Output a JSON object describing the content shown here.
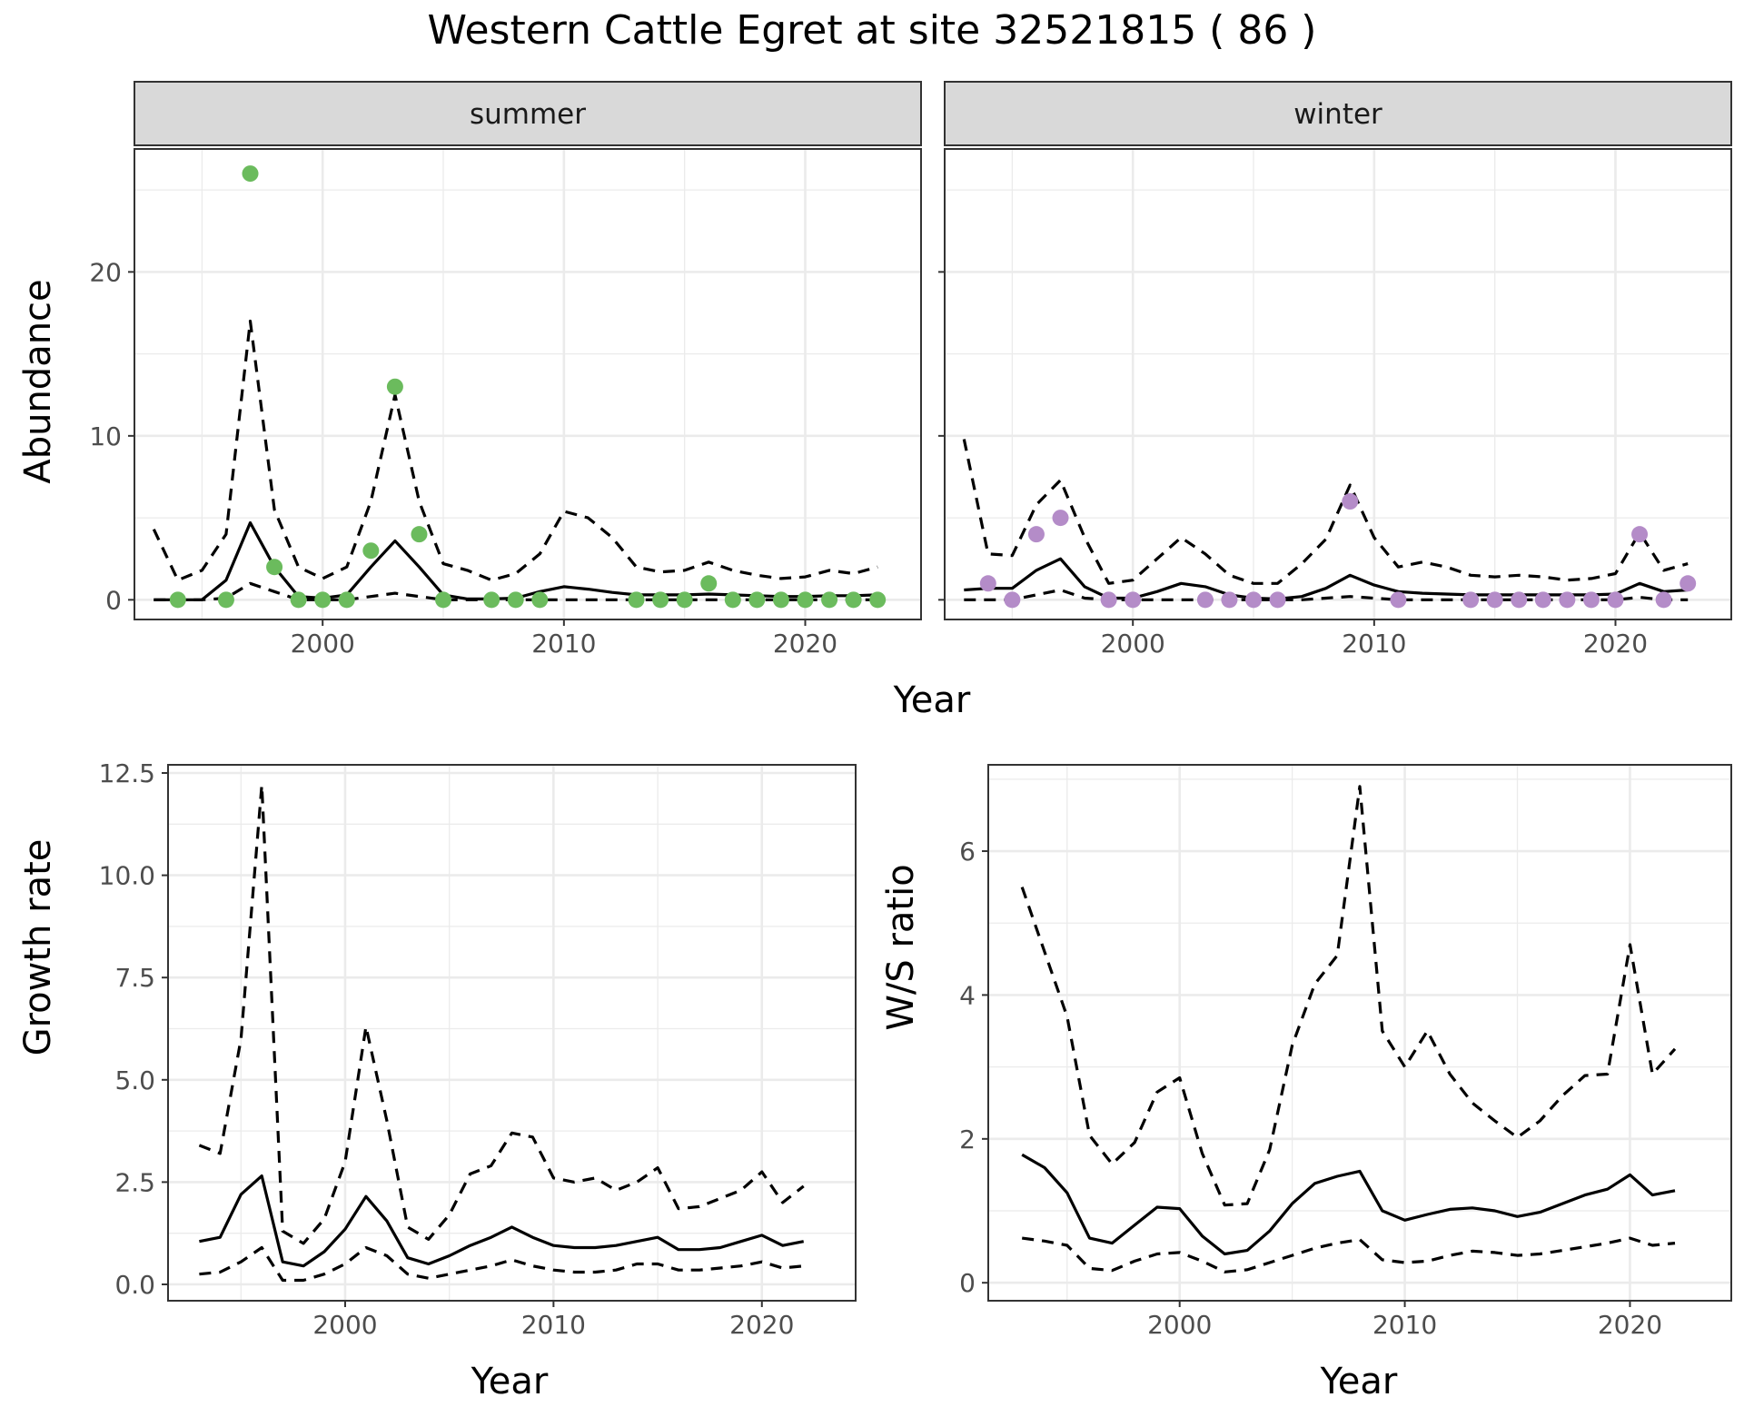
{
  "title": "Western Cattle Egret at site 32521815 ( 86 )",
  "colors": {
    "summer": "#6bbb5d",
    "winter": "#b48cc8",
    "line": "#000000",
    "strip_bg": "#d9d9d9",
    "grid": "#ebebeb"
  },
  "chart_data": [
    {
      "type": "line",
      "panel": "summer",
      "strip_label": "summer",
      "xlabel": "Year",
      "ylabel": "Abundance",
      "xlim": [
        1992.2,
        2024.8
      ],
      "ylim": [
        -1.2,
        27.5
      ],
      "x_ticks": [
        2000,
        2010,
        2020
      ],
      "x_tick_labels": [
        "2000",
        "2010",
        "2020"
      ],
      "y_ticks": [
        0,
        10,
        20
      ],
      "y_tick_labels": [
        "0",
        "10",
        "20"
      ],
      "grid": true,
      "points": {
        "x": [
          1994,
          1996,
          1997,
          1998,
          1999,
          2000,
          2001,
          2002,
          2003,
          2004,
          2005,
          2007,
          2008,
          2009,
          2013,
          2014,
          2015,
          2016,
          2017,
          2018,
          2019,
          2020,
          2021,
          2022,
          2023
        ],
        "y": [
          0,
          0,
          26,
          2,
          0,
          0,
          0,
          3,
          13,
          4,
          0,
          0,
          0,
          0,
          0,
          0,
          0,
          1,
          0,
          0,
          0,
          0,
          0,
          0,
          0
        ]
      },
      "series": [
        {
          "style": "solid",
          "x": [
            1993,
            1994,
            1995,
            1996,
            1997,
            1998,
            1999,
            2000,
            2001,
            2002,
            2003,
            2004,
            2005,
            2006,
            2007,
            2008,
            2009,
            2010,
            2011,
            2012,
            2013,
            2014,
            2015,
            2016,
            2017,
            2018,
            2019,
            2020,
            2021,
            2022,
            2023
          ],
          "y": [
            0,
            0,
            0,
            1.2,
            4.7,
            2.0,
            0.2,
            0.1,
            0.3,
            2.0,
            3.6,
            2.0,
            0.3,
            0.05,
            0.05,
            0.1,
            0.5,
            0.8,
            0.65,
            0.45,
            0.3,
            0.3,
            0.3,
            0.35,
            0.3,
            0.25,
            0.2,
            0.2,
            0.25,
            0.25,
            0.3
          ]
        },
        {
          "style": "dashed",
          "x": [
            1993,
            1994,
            1995,
            1996,
            1997,
            1998,
            1999,
            2000,
            2001,
            2002,
            2003,
            2004,
            2005,
            2006,
            2007,
            2008,
            2009,
            2010,
            2011,
            2012,
            2013,
            2014,
            2015,
            2016,
            2017,
            2018,
            2019,
            2020,
            2021,
            2022,
            2023
          ],
          "y": [
            4.3,
            1.2,
            1.8,
            4.0,
            17.0,
            5.5,
            2.0,
            1.3,
            2.0,
            6.0,
            12.5,
            6.0,
            2.2,
            1.8,
            1.2,
            1.6,
            2.8,
            5.4,
            5.0,
            3.8,
            2.0,
            1.7,
            1.8,
            2.3,
            1.8,
            1.5,
            1.3,
            1.4,
            1.8,
            1.6,
            2.0
          ]
        },
        {
          "style": "dashed",
          "x": [
            1993,
            1994,
            1995,
            1996,
            1997,
            1998,
            1999,
            2000,
            2001,
            2002,
            2003,
            2004,
            2005,
            2006,
            2007,
            2008,
            2009,
            2010,
            2011,
            2012,
            2013,
            2014,
            2015,
            2016,
            2017,
            2018,
            2019,
            2020,
            2021,
            2022,
            2023
          ],
          "y": [
            0,
            0,
            0,
            0.1,
            1.0,
            0.5,
            0,
            0,
            0,
            0.2,
            0.4,
            0.2,
            0,
            0,
            0,
            0,
            0,
            0,
            0,
            0,
            0,
            0,
            0,
            0,
            0,
            0,
            0,
            0,
            0,
            0,
            0
          ]
        }
      ]
    },
    {
      "type": "line",
      "panel": "winter",
      "strip_label": "winter",
      "xlabel": "Year",
      "ylabel": "Abundance",
      "xlim": [
        1992.2,
        2024.8
      ],
      "ylim": [
        -1.2,
        27.5
      ],
      "x_ticks": [
        2000,
        2010,
        2020
      ],
      "x_tick_labels": [
        "2000",
        "2010",
        "2020"
      ],
      "y_ticks": [
        0,
        10,
        20
      ],
      "y_tick_labels": [
        "0",
        "10",
        "20"
      ],
      "grid": true,
      "points": {
        "x": [
          1994,
          1995,
          1996,
          1997,
          1999,
          2000,
          2003,
          2004,
          2005,
          2006,
          2009,
          2011,
          2014,
          2015,
          2016,
          2017,
          2018,
          2019,
          2020,
          2021,
          2022,
          2023
        ],
        "y": [
          1,
          0,
          4,
          5,
          0,
          0,
          0,
          0,
          0,
          0,
          6,
          0,
          0,
          0,
          0,
          0,
          0,
          0,
          0,
          4,
          0,
          1
        ]
      },
      "series": [
        {
          "style": "solid",
          "x": [
            1993,
            1994,
            1995,
            1996,
            1997,
            1998,
            1999,
            2000,
            2001,
            2002,
            2003,
            2004,
            2005,
            2006,
            2007,
            2008,
            2009,
            2010,
            2011,
            2012,
            2013,
            2014,
            2015,
            2016,
            2017,
            2018,
            2019,
            2020,
            2021,
            2022,
            2023
          ],
          "y": [
            0.6,
            0.7,
            0.7,
            1.8,
            2.5,
            0.8,
            0.1,
            0.1,
            0.5,
            1.0,
            0.8,
            0.3,
            0.1,
            0.05,
            0.2,
            0.7,
            1.5,
            0.9,
            0.5,
            0.4,
            0.35,
            0.3,
            0.3,
            0.3,
            0.3,
            0.3,
            0.3,
            0.35,
            1.0,
            0.5,
            0.6
          ]
        },
        {
          "style": "dashed",
          "x": [
            1993,
            1994,
            1995,
            1996,
            1997,
            1998,
            1999,
            2000,
            2001,
            2002,
            2003,
            2004,
            2005,
            2006,
            2007,
            2008,
            2009,
            2010,
            2011,
            2012,
            2013,
            2014,
            2015,
            2016,
            2017,
            2018,
            2019,
            2020,
            2021,
            2022,
            2023
          ],
          "y": [
            9.8,
            2.8,
            2.7,
            5.8,
            7.3,
            3.8,
            1.0,
            1.2,
            2.5,
            3.8,
            2.8,
            1.5,
            1.0,
            1.0,
            2.2,
            3.7,
            7.0,
            3.8,
            2.0,
            2.3,
            2.0,
            1.5,
            1.4,
            1.5,
            1.4,
            1.2,
            1.3,
            1.6,
            4.1,
            1.8,
            2.2
          ]
        },
        {
          "style": "dashed",
          "x": [
            1993,
            1994,
            1995,
            1996,
            1997,
            1998,
            1999,
            2000,
            2001,
            2002,
            2003,
            2004,
            2005,
            2006,
            2007,
            2008,
            2009,
            2010,
            2011,
            2012,
            2013,
            2014,
            2015,
            2016,
            2017,
            2018,
            2019,
            2020,
            2021,
            2022,
            2023
          ],
          "y": [
            0,
            0,
            0,
            0.3,
            0.6,
            0.1,
            0,
            0,
            0,
            0,
            0,
            0,
            0,
            0,
            0,
            0.1,
            0.2,
            0.1,
            0,
            0,
            0,
            0,
            0,
            0,
            0,
            0,
            0,
            0,
            0.15,
            0,
            0
          ]
        }
      ]
    },
    {
      "type": "line",
      "panel": "growth",
      "xlabel": "Year",
      "ylabel": "Growth rate",
      "xlim": [
        1991.5,
        2024.5
      ],
      "ylim": [
        -0.4,
        12.7
      ],
      "x_ticks": [
        2000,
        2010,
        2020
      ],
      "x_tick_labels": [
        "2000",
        "2010",
        "2020"
      ],
      "y_ticks": [
        0,
        2.5,
        5,
        7.5,
        10,
        12.5
      ],
      "y_tick_labels": [
        "0.0",
        "2.5",
        "5.0",
        "7.5",
        "10.0",
        "12.5"
      ],
      "grid": true,
      "series": [
        {
          "style": "solid",
          "x": [
            1993,
            1994,
            1995,
            1996,
            1997,
            1998,
            1999,
            2000,
            2001,
            2002,
            2003,
            2004,
            2005,
            2006,
            2007,
            2008,
            2009,
            2010,
            2011,
            2012,
            2013,
            2014,
            2015,
            2016,
            2017,
            2018,
            2019,
            2020,
            2021,
            2022
          ],
          "y": [
            1.05,
            1.15,
            2.2,
            2.65,
            0.55,
            0.45,
            0.8,
            1.35,
            2.15,
            1.55,
            0.65,
            0.5,
            0.7,
            0.95,
            1.15,
            1.4,
            1.15,
            0.95,
            0.9,
            0.9,
            0.95,
            1.05,
            1.15,
            0.85,
            0.85,
            0.9,
            1.05,
            1.2,
            0.95,
            1.05
          ]
        },
        {
          "style": "dashed",
          "x": [
            1993,
            1994,
            1995,
            1996,
            1997,
            1998,
            1999,
            2000,
            2001,
            2002,
            2003,
            2004,
            2005,
            2006,
            2007,
            2008,
            2009,
            2010,
            2011,
            2012,
            2013,
            2014,
            2015,
            2016,
            2017,
            2018,
            2019,
            2020,
            2021,
            2022
          ],
          "y": [
            3.4,
            3.2,
            6.0,
            12.2,
            1.3,
            1.0,
            1.6,
            3.0,
            6.3,
            4.0,
            1.4,
            1.1,
            1.7,
            2.7,
            2.9,
            3.7,
            3.6,
            2.6,
            2.5,
            2.6,
            2.3,
            2.5,
            2.85,
            1.85,
            1.9,
            2.1,
            2.3,
            2.75,
            2.0,
            2.4
          ]
        },
        {
          "style": "dashed",
          "x": [
            1993,
            1994,
            1995,
            1996,
            1997,
            1998,
            1999,
            2000,
            2001,
            2002,
            2003,
            2004,
            2005,
            2006,
            2007,
            2008,
            2009,
            2010,
            2011,
            2012,
            2013,
            2014,
            2015,
            2016,
            2017,
            2018,
            2019,
            2020,
            2021,
            2022
          ],
          "y": [
            0.25,
            0.3,
            0.55,
            0.9,
            0.1,
            0.1,
            0.25,
            0.5,
            0.9,
            0.7,
            0.25,
            0.15,
            0.25,
            0.35,
            0.45,
            0.6,
            0.45,
            0.35,
            0.3,
            0.3,
            0.35,
            0.5,
            0.5,
            0.35,
            0.35,
            0.4,
            0.45,
            0.55,
            0.4,
            0.45
          ]
        }
      ]
    },
    {
      "type": "line",
      "panel": "ratio",
      "xlabel": "Year",
      "ylabel": "W/S ratio",
      "xlim": [
        1991.5,
        2024.5
      ],
      "ylim": [
        -0.25,
        7.2
      ],
      "x_ticks": [
        2000,
        2010,
        2020
      ],
      "x_tick_labels": [
        "2000",
        "2010",
        "2020"
      ],
      "y_ticks": [
        0,
        2,
        4,
        6
      ],
      "y_tick_labels": [
        "0",
        "2",
        "4",
        "6"
      ],
      "grid": true,
      "series": [
        {
          "style": "solid",
          "x": [
            1993,
            1994,
            1995,
            1996,
            1997,
            1998,
            1999,
            2000,
            2001,
            2002,
            2003,
            2004,
            2005,
            2006,
            2007,
            2008,
            2009,
            2010,
            2011,
            2012,
            2013,
            2014,
            2015,
            2016,
            2017,
            2018,
            2019,
            2020,
            2021,
            2022
          ],
          "y": [
            1.78,
            1.6,
            1.25,
            0.62,
            0.55,
            0.8,
            1.05,
            1.03,
            0.65,
            0.4,
            0.45,
            0.72,
            1.1,
            1.38,
            1.48,
            1.55,
            1.0,
            0.87,
            0.95,
            1.02,
            1.04,
            1.0,
            0.92,
            0.98,
            1.1,
            1.22,
            1.3,
            1.5,
            1.22,
            1.28
          ]
        },
        {
          "style": "dashed",
          "x": [
            1993,
            1994,
            1995,
            1996,
            1997,
            1998,
            1999,
            2000,
            2001,
            2002,
            2003,
            2004,
            2005,
            2006,
            2007,
            2008,
            2009,
            2010,
            2011,
            2012,
            2013,
            2014,
            2015,
            2016,
            2017,
            2018,
            2019,
            2020,
            2021,
            2022
          ],
          "y": [
            5.5,
            4.6,
            3.7,
            2.05,
            1.65,
            1.95,
            2.65,
            2.85,
            1.8,
            1.08,
            1.1,
            1.85,
            3.3,
            4.15,
            4.55,
            6.9,
            3.5,
            3.0,
            3.5,
            2.9,
            2.5,
            2.25,
            2.02,
            2.25,
            2.6,
            2.88,
            2.9,
            4.7,
            2.9,
            3.25
          ]
        },
        {
          "style": "dashed",
          "x": [
            1993,
            1994,
            1995,
            1996,
            1997,
            1998,
            1999,
            2000,
            2001,
            2002,
            2003,
            2004,
            2005,
            2006,
            2007,
            2008,
            2009,
            2010,
            2011,
            2012,
            2013,
            2014,
            2015,
            2016,
            2017,
            2018,
            2019,
            2020,
            2021,
            2022
          ],
          "y": [
            0.62,
            0.58,
            0.52,
            0.2,
            0.17,
            0.3,
            0.4,
            0.42,
            0.3,
            0.15,
            0.18,
            0.28,
            0.38,
            0.48,
            0.55,
            0.6,
            0.32,
            0.28,
            0.3,
            0.38,
            0.44,
            0.42,
            0.38,
            0.4,
            0.45,
            0.5,
            0.55,
            0.62,
            0.52,
            0.55
          ]
        }
      ]
    }
  ]
}
